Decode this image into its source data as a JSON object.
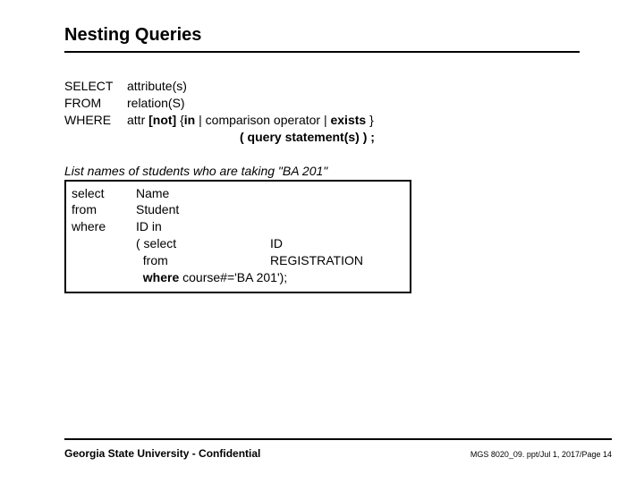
{
  "title": "Nesting Queries",
  "syntax": {
    "select_kw": "SELECT",
    "select_val": "attribute(s)",
    "from_kw": "FROM",
    "from_val": "relation(S)",
    "where_kw": "WHERE",
    "where_val_pre": "attr ",
    "where_not": "[not]",
    "where_mid": " {",
    "where_in": "in",
    "where_mid2": " | comparison operator | ",
    "where_exists": "exists",
    "where_end": " }",
    "query_stmt": "( query statement(s) ) ;"
  },
  "example": {
    "intro": "List names of students who are taking \"BA 201\"",
    "sel_kw": "select",
    "sel_val": "Name",
    "from_kw": "from",
    "from_val": "Student",
    "where_kw": "where",
    "where_val": "ID in",
    "sub_sel_kw": "( select",
    "sub_sel_val": "ID",
    "sub_from_kw": "  from",
    "sub_from_val": "REGISTRATION",
    "sub_where": "  where",
    "sub_where_val": " course#='BA 201');"
  },
  "footer": {
    "left": "Georgia State University - Confidential",
    "right": "MGS 8020_09. ppt/Jul 1, 2017/Page 14"
  }
}
